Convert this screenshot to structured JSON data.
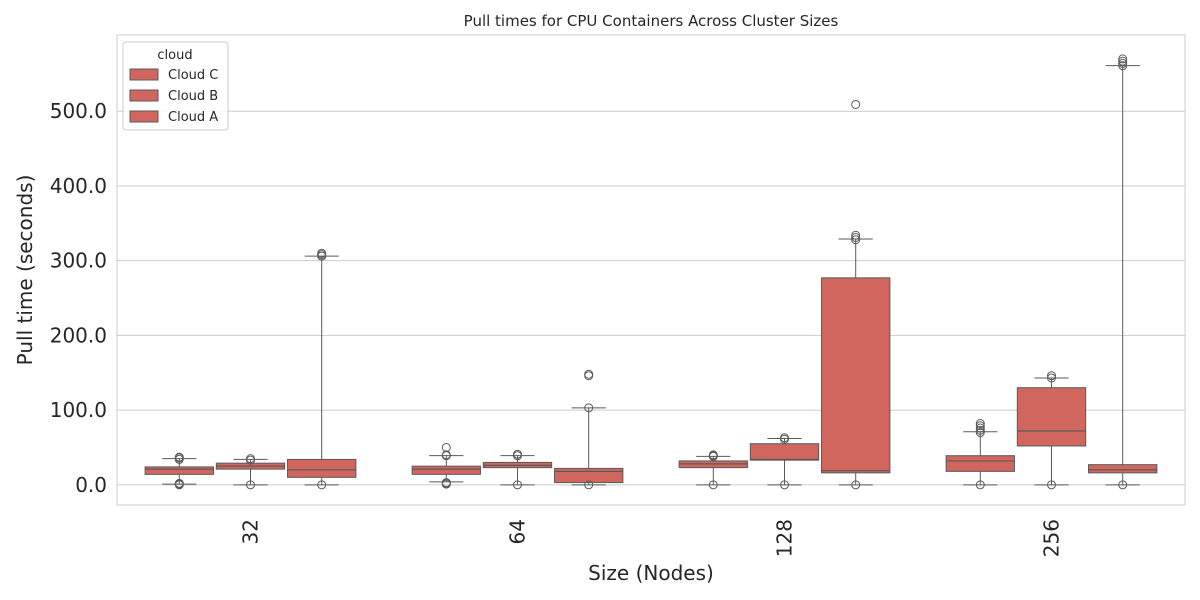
{
  "chart_data": {
    "type": "box",
    "title": "Pull times for CPU Containers Across Cluster Sizes",
    "xlabel": "Size (Nodes)",
    "ylabel": "Pull time (seconds)",
    "categories": [
      "32",
      "64",
      "128",
      "256"
    ],
    "ylim": [
      -27,
      602
    ],
    "yticks": [
      0,
      100,
      200,
      300,
      400,
      500
    ],
    "ytick_labels": [
      "0.0",
      "100.0",
      "200.0",
      "300.0",
      "400.0",
      "500.0"
    ],
    "grid": true,
    "legend": {
      "title": "cloud",
      "position": "top-left"
    },
    "series": [
      {
        "name": "Cloud C",
        "color": "#d1665f",
        "boxes": [
          {
            "category": "32",
            "whislo": 1,
            "q1": 14,
            "median": 21,
            "q3": 24,
            "whishi": 35,
            "fliers": [
              0,
              1,
              2,
              34,
              36,
              37
            ]
          },
          {
            "category": "64",
            "whislo": 4,
            "q1": 14,
            "median": 21,
            "q3": 25,
            "whishi": 39,
            "fliers": [
              1,
              2,
              3,
              39,
              40,
              50
            ]
          },
          {
            "category": "128",
            "whislo": 0,
            "q1": 23,
            "median": 28,
            "q3": 32,
            "whishi": 38,
            "fliers": [
              0,
              38,
              39,
              40
            ]
          },
          {
            "category": "256",
            "whislo": 0,
            "q1": 18,
            "median": 32,
            "q3": 39,
            "whishi": 71,
            "fliers": [
              0,
              70,
              73,
              76,
              79,
              82
            ]
          }
        ]
      },
      {
        "name": "Cloud B",
        "color": "#d1665f",
        "boxes": [
          {
            "category": "32",
            "whislo": 0,
            "q1": 21,
            "median": 25,
            "q3": 29,
            "whishi": 34,
            "fliers": [
              0,
              33,
              35
            ]
          },
          {
            "category": "64",
            "whislo": 0,
            "q1": 23,
            "median": 26,
            "q3": 30,
            "whishi": 39,
            "fliers": [
              0,
              39,
              41
            ]
          },
          {
            "category": "128",
            "whislo": 0,
            "q1": 33,
            "median": 34,
            "q3": 55,
            "whishi": 62,
            "fliers": [
              0,
              61,
              63
            ]
          },
          {
            "category": "256",
            "whislo": 0,
            "q1": 52,
            "median": 72,
            "q3": 130,
            "whishi": 143,
            "fliers": [
              0,
              143,
              146
            ]
          }
        ]
      },
      {
        "name": "Cloud A",
        "color": "#d1665f",
        "boxes": [
          {
            "category": "32",
            "whislo": 0,
            "q1": 10,
            "median": 20,
            "q3": 34,
            "whishi": 306,
            "fliers": [
              0,
              306,
              308,
              310
            ]
          },
          {
            "category": "64",
            "whislo": 0,
            "q1": 3,
            "median": 18,
            "q3": 22,
            "whishi": 103,
            "fliers": [
              0,
              103,
              146,
              148
            ]
          },
          {
            "category": "128",
            "whislo": 0,
            "q1": 16,
            "median": 19,
            "q3": 277,
            "whishi": 329,
            "fliers": [
              0,
              328,
              331,
              334,
              509
            ]
          },
          {
            "category": "256",
            "whislo": 0,
            "q1": 16,
            "median": 20,
            "q3": 27,
            "whishi": 561,
            "fliers": [
              0,
              561,
              564,
              567,
              570
            ]
          }
        ]
      }
    ]
  }
}
